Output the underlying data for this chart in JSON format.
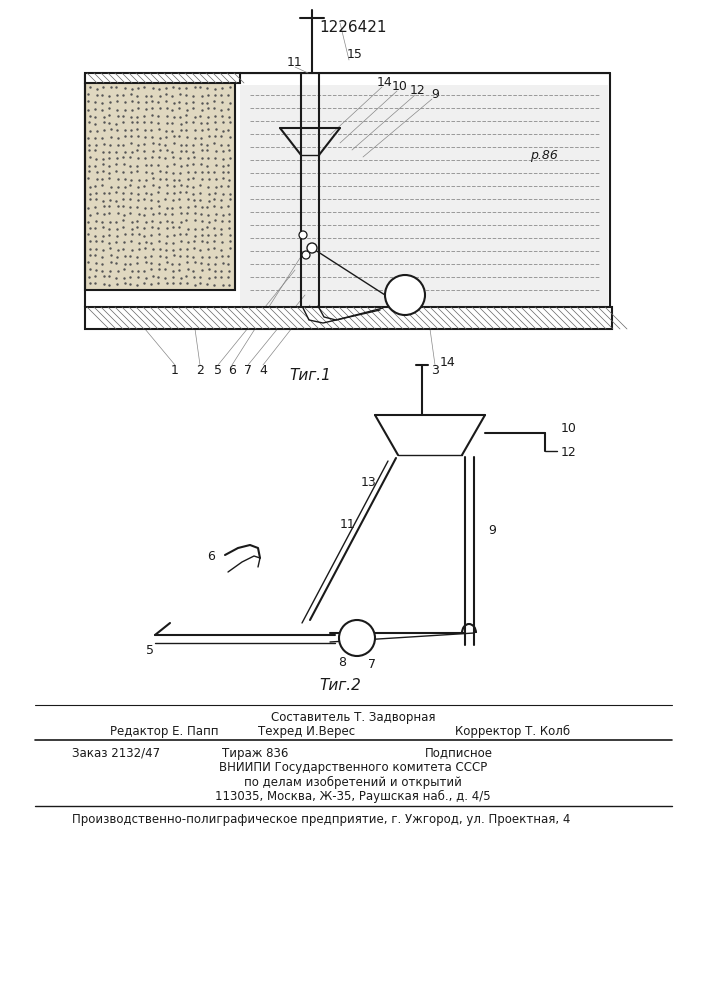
{
  "patent_number": "1226421",
  "fig1_caption": "Τиг.1",
  "fig2_caption": "Τиг.2",
  "footer_sestavitel": "Составитель Т. Задворная",
  "footer_redaktor": "Редактор Е. Папп",
  "footer_tehred": "Техред И.Верес",
  "footer_korrektor": "Корректор Т. Колб",
  "footer_zakaz": "Заказ 2132/47",
  "footer_tirazh": "Тираж 836",
  "footer_podpisnoe": "Подписное",
  "footer_vniip1": "ВНИИПИ Государственного комитета СССР",
  "footer_vniip2": "по делам изобретений и открытий",
  "footer_vniip3": "113035, Москва, Ж-35, Раушская наб., д. 4/5",
  "footer_printer": "Производственно-полиграфическое предприятие, г. Ужгород, ул. Проектная, 4",
  "bg_color": "#ffffff",
  "lc": "#1a1a1a"
}
